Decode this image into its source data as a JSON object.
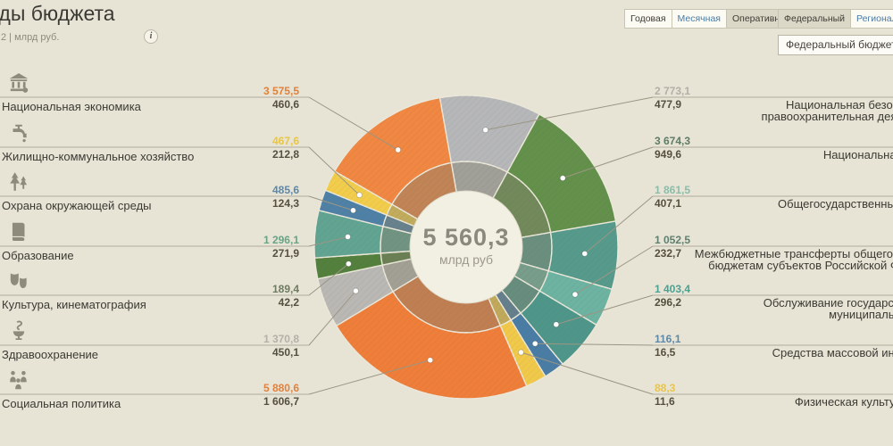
{
  "page": {
    "title": "Расходы бюджета",
    "subtitle": "2 | млрд руб.",
    "info_icon": "i"
  },
  "controls": {
    "period_tabs": [
      {
        "label": "Годовая",
        "state": "default"
      },
      {
        "label": "Месячная",
        "state": "link"
      },
      {
        "label": "Оперативная",
        "state": "selected"
      }
    ],
    "level_tabs": [
      {
        "label": "Федеральный",
        "state": "selected"
      },
      {
        "label": "Региональный",
        "state": "link"
      }
    ],
    "budget_select": {
      "value": "Федеральный бюджет"
    }
  },
  "chart_data": {
    "type": "pie",
    "subtype": "donut",
    "units": "млрд руб",
    "center_total_text": "5 560,3",
    "center_total": 5560.3,
    "legend_position": "sides",
    "start_angle_deg": -10,
    "min_segment_angle_deg": 8,
    "segments": [
      {
        "label": "Национальная безопасность и правоохранительная деятельность",
        "label_lines": [
          "Национальная безопасность и",
          "правоохранительная деятельность"
        ],
        "plan": 2773.1,
        "executed": 477.9,
        "plan_text": "2 773,1",
        "executed_text": "477,9",
        "color": "#b6b7b9",
        "number_color": "#b2b0a7",
        "side": "right"
      },
      {
        "label": "Национальная оборона",
        "plan": 3674.3,
        "executed": 949.6,
        "plan_text": "3 674,3",
        "executed_text": "949,6",
        "color": "#63904b",
        "number_color": "#5e7b64",
        "side": "right"
      },
      {
        "label": "Общегосударственные вопросы",
        "plan": 1861.5,
        "executed": 407.1,
        "plan_text": "1 861,5",
        "executed_text": "407,1",
        "color": "#569a8c",
        "number_color": "#8cbcaa",
        "side": "right"
      },
      {
        "label": "Межбюджетные трансферты общего характера бюджетам субъектов Российской Федерации",
        "label_lines": [
          "Межбюджетные трансферты общего характера",
          "бюджетам субъектов Российской Федерации"
        ],
        "plan": 1052.5,
        "executed": 232.7,
        "plan_text": "1 052,5",
        "executed_text": "232,7",
        "color": "#6db3a2",
        "number_color": "#5e8070",
        "side": "right"
      },
      {
        "label": "Обслуживание государственного и муниципального долга",
        "label_lines": [
          "Обслуживание государственного и",
          "муниципального долга"
        ],
        "plan": 1403.4,
        "executed": 296.2,
        "plan_text": "1 403,4",
        "executed_text": "296,2",
        "color": "#4f968a",
        "number_color": "#4ba293",
        "side": "right"
      },
      {
        "label": "Средства массовой информации",
        "plan": 116.1,
        "executed": 16.5,
        "plan_text": "116,1",
        "executed_text": "16,5",
        "color": "#4a7da5",
        "number_color": "#5f89a8",
        "side": "right"
      },
      {
        "label": "Физическая культура и спорт",
        "plan": 88.3,
        "executed": 11.6,
        "plan_text": "88,3",
        "executed_text": "11,6",
        "color": "#f0c94b",
        "number_color": "#e8c44f",
        "side": "right"
      },
      {
        "label": "Национальная экономика",
        "plan": 3575.5,
        "executed": 460.6,
        "plan_text": "3 575,5",
        "executed_text": "460,6",
        "color": "#f08742",
        "number_color": "#e08138",
        "side": "left",
        "icon": "bank-icon"
      },
      {
        "label": "Жилищно-коммунальное хозяйство",
        "plan": 467.6,
        "executed": 212.8,
        "plan_text": "467,6",
        "executed_text": "212,8",
        "color": "#f2cd4c",
        "number_color": "#eac63e",
        "side": "left",
        "icon": "faucet-icon"
      },
      {
        "label": "Охрана окружающей среды",
        "plan": 485.6,
        "executed": 124.3,
        "plan_text": "485,6",
        "executed_text": "124,3",
        "color": "#4f81a6",
        "number_color": "#5d88a9",
        "side": "left",
        "icon": "trees-icon"
      },
      {
        "label": "Образование",
        "plan": 1296.1,
        "executed": 271.9,
        "plan_text": "1 296,1",
        "executed_text": "271,9",
        "color": "#61a492",
        "number_color": "#68a486",
        "side": "left",
        "icon": "book-icon"
      },
      {
        "label": "Культура, кинематография",
        "plan": 189.4,
        "executed": 42.2,
        "plan_text": "189,4",
        "executed_text": "42,2",
        "color": "#53803d",
        "number_color": "#6f7b62",
        "side": "left",
        "icon": "masks-icon"
      },
      {
        "label": "Здравоохранение",
        "plan": 1370.8,
        "executed": 450.1,
        "plan_text": "1 370,8",
        "executed_text": "450,1",
        "color": "#bab8b4",
        "number_color": "#b3b1a8",
        "side": "left",
        "icon": "medicine-icon"
      },
      {
        "label": "Социальная политика",
        "plan": 5880.6,
        "executed": 1606.7,
        "plan_text": "5 880,6",
        "executed_text": "1 606,7",
        "color": "#ee7e3a",
        "number_color": "#e0813f",
        "side": "left",
        "icon": "people-icon"
      }
    ]
  }
}
